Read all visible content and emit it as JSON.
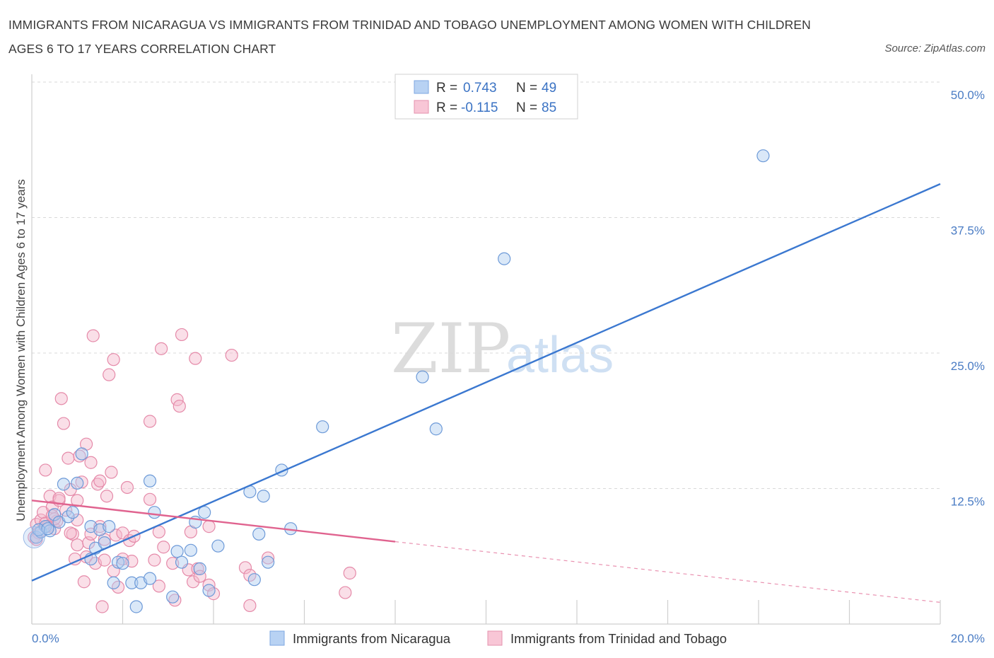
{
  "title": "IMMIGRANTS FROM NICARAGUA VS IMMIGRANTS FROM TRINIDAD AND TOBAGO UNEMPLOYMENT AMONG WOMEN WITH CHILDREN AGES 6 TO 17 YEARS CORRELATION CHART",
  "source": "Source: ZipAtlas.com",
  "watermark": {
    "zip": "ZIP",
    "atlas": "atlas"
  },
  "colors": {
    "blue": "#3b78d0",
    "blue_fill": "#aecbf0",
    "pink": "#e0638f",
    "pink_fill": "#f5b8cc",
    "grid": "#d8d8d8",
    "tick_text": "#4a7cc4"
  },
  "legend": {
    "rows": [
      {
        "r_label": "R =",
        "r_value": "0.743",
        "n_label": "N =",
        "n_value": "49"
      },
      {
        "r_label": "R =",
        "r_value": "-0.115",
        "n_label": "N =",
        "n_value": "85"
      }
    ]
  },
  "bottom_legend": [
    "Immigrants from Nicaragua",
    "Immigrants from Trinidad and Tobago"
  ],
  "chart_data": {
    "type": "scatter",
    "xlabel": "",
    "ylabel": "Unemployment Among Women with Children Ages 6 to 17 years",
    "xlim": [
      0,
      20
    ],
    "ylim": [
      0,
      50
    ],
    "x_tick_labels": [
      "0.0%",
      "20.0%"
    ],
    "y_tick_labels": [
      "12.5%",
      "25.0%",
      "37.5%",
      "50.0%"
    ],
    "y_ticks": [
      12.5,
      25.0,
      37.5,
      50.0
    ],
    "grid": "horizontal dashed",
    "legend_position": "top-center",
    "series": [
      {
        "name": "Immigrants from Nicaragua",
        "color": "#3b78d0",
        "trend": {
          "x0": 0,
          "y0": 4.0,
          "x1": 20,
          "y1": 40.6,
          "dashed_from": null
        },
        "points": [
          [
            0.1,
            8.0
          ],
          [
            0.2,
            8.5
          ],
          [
            0.3,
            9.0
          ],
          [
            0.4,
            8.6
          ],
          [
            0.5,
            10.1
          ],
          [
            0.6,
            9.4
          ],
          [
            0.7,
            12.9
          ],
          [
            0.8,
            9.9
          ],
          [
            0.9,
            10.3
          ],
          [
            1.0,
            13.0
          ],
          [
            1.1,
            15.7
          ],
          [
            1.3,
            6.0
          ],
          [
            1.3,
            9.0
          ],
          [
            1.4,
            7.0
          ],
          [
            1.5,
            8.7
          ],
          [
            1.6,
            7.5
          ],
          [
            1.7,
            9.0
          ],
          [
            1.8,
            3.8
          ],
          [
            1.9,
            5.7
          ],
          [
            2.0,
            5.6
          ],
          [
            2.2,
            3.8
          ],
          [
            2.3,
            1.6
          ],
          [
            2.4,
            3.8
          ],
          [
            2.6,
            4.2
          ],
          [
            2.6,
            13.2
          ],
          [
            2.7,
            10.3
          ],
          [
            3.1,
            2.5
          ],
          [
            3.2,
            6.7
          ],
          [
            3.3,
            5.7
          ],
          [
            3.5,
            6.8
          ],
          [
            3.6,
            9.4
          ],
          [
            3.7,
            5.1
          ],
          [
            3.8,
            10.3
          ],
          [
            3.9,
            3.1
          ],
          [
            4.1,
            7.2
          ],
          [
            4.8,
            12.2
          ],
          [
            4.9,
            4.1
          ],
          [
            5.0,
            8.3
          ],
          [
            5.1,
            11.8
          ],
          [
            5.2,
            5.7
          ],
          [
            5.5,
            14.2
          ],
          [
            5.7,
            8.8
          ],
          [
            6.4,
            18.2
          ],
          [
            8.6,
            22.8
          ],
          [
            8.9,
            18.0
          ],
          [
            10.4,
            33.7
          ],
          [
            16.1,
            43.2
          ],
          [
            0.15,
            8.7
          ],
          [
            0.35,
            8.8
          ]
        ]
      },
      {
        "name": "Immigrants from Trinidad and Tobago",
        "color": "#e0638f",
        "trend": {
          "x0": 0,
          "y0": 11.4,
          "x1": 8.0,
          "y1": 7.6,
          "dashed_to_x": 20,
          "dashed_to_y": 2.0
        },
        "points": [
          [
            0.05,
            8.0
          ],
          [
            0.1,
            9.2
          ],
          [
            0.15,
            8.4
          ],
          [
            0.2,
            9.6
          ],
          [
            0.25,
            10.3
          ],
          [
            0.3,
            14.2
          ],
          [
            0.35,
            9.0
          ],
          [
            0.4,
            11.8
          ],
          [
            0.45,
            10.8
          ],
          [
            0.5,
            8.8
          ],
          [
            0.55,
            9.5
          ],
          [
            0.6,
            11.4
          ],
          [
            0.65,
            20.8
          ],
          [
            0.7,
            18.5
          ],
          [
            0.75,
            10.5
          ],
          [
            0.8,
            15.3
          ],
          [
            0.85,
            12.4
          ],
          [
            0.9,
            8.3
          ],
          [
            0.95,
            6.0
          ],
          [
            1.0,
            9.6
          ],
          [
            1.0,
            7.3
          ],
          [
            1.05,
            15.5
          ],
          [
            1.1,
            13.1
          ],
          [
            1.15,
            3.9
          ],
          [
            1.2,
            16.6
          ],
          [
            1.2,
            6.2
          ],
          [
            1.25,
            7.5
          ],
          [
            1.3,
            14.9
          ],
          [
            1.3,
            8.3
          ],
          [
            1.35,
            26.6
          ],
          [
            1.4,
            5.6
          ],
          [
            1.45,
            12.9
          ],
          [
            1.5,
            13.2
          ],
          [
            1.55,
            1.6
          ],
          [
            1.6,
            7.8
          ],
          [
            1.65,
            11.8
          ],
          [
            1.7,
            23.0
          ],
          [
            1.75,
            14.0
          ],
          [
            1.8,
            4.9
          ],
          [
            1.8,
            24.4
          ],
          [
            1.85,
            8.2
          ],
          [
            1.9,
            3.4
          ],
          [
            2.0,
            6.0
          ],
          [
            2.0,
            8.4
          ],
          [
            2.1,
            12.6
          ],
          [
            2.15,
            7.7
          ],
          [
            2.2,
            5.8
          ],
          [
            2.6,
            11.5
          ],
          [
            2.6,
            18.7
          ],
          [
            2.7,
            5.9
          ],
          [
            2.8,
            8.5
          ],
          [
            2.8,
            3.5
          ],
          [
            2.85,
            25.4
          ],
          [
            2.9,
            7.1
          ],
          [
            3.1,
            5.6
          ],
          [
            3.15,
            2.2
          ],
          [
            3.2,
            20.7
          ],
          [
            3.25,
            20.1
          ],
          [
            3.3,
            26.7
          ],
          [
            3.45,
            5.0
          ],
          [
            3.5,
            8.5
          ],
          [
            3.55,
            3.9
          ],
          [
            3.6,
            24.5
          ],
          [
            3.65,
            5.1
          ],
          [
            3.7,
            4.4
          ],
          [
            3.9,
            9.0
          ],
          [
            3.9,
            3.6
          ],
          [
            4.0,
            2.8
          ],
          [
            4.4,
            24.8
          ],
          [
            4.7,
            5.2
          ],
          [
            4.8,
            4.5
          ],
          [
            4.8,
            1.7
          ],
          [
            5.2,
            6.1
          ],
          [
            6.9,
            2.9
          ],
          [
            7.0,
            4.7
          ],
          [
            0.5,
            9.7
          ],
          [
            0.6,
            11.6
          ],
          [
            0.85,
            8.4
          ],
          [
            1.6,
            5.9
          ],
          [
            2.25,
            8.1
          ],
          [
            0.1,
            7.8
          ],
          [
            0.3,
            9.3
          ],
          [
            1.0,
            11.4
          ],
          [
            1.5,
            9.0
          ],
          [
            0.45,
            10.0
          ]
        ]
      }
    ]
  }
}
